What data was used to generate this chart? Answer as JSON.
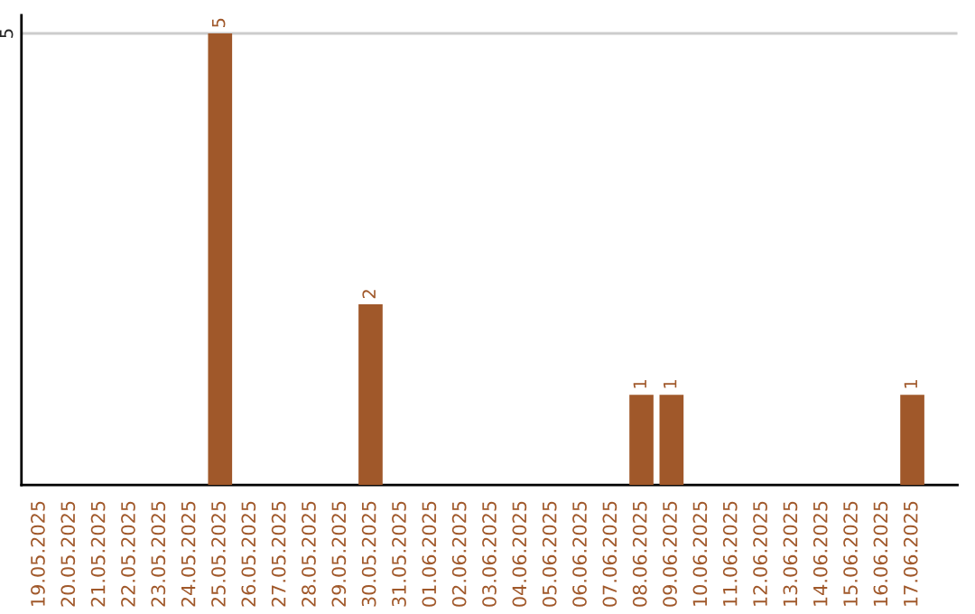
{
  "chart_data": {
    "type": "bar",
    "categories": [
      "19.05.2025",
      "20.05.2025",
      "21.05.2025",
      "22.05.2025",
      "23.05.2025",
      "24.05.2025",
      "25.05.2025",
      "26.05.2025",
      "27.05.2025",
      "28.05.2025",
      "29.05.2025",
      "30.05.2025",
      "31.05.2025",
      "01.06.2025",
      "02.06.2025",
      "03.06.2025",
      "04.06.2025",
      "05.06.2025",
      "06.06.2025",
      "07.06.2025",
      "08.06.2025",
      "09.06.2025",
      "10.06.2025",
      "11.06.2025",
      "12.06.2025",
      "13.06.2025",
      "14.06.2025",
      "15.06.2025",
      "16.06.2025",
      "17.06.2025"
    ],
    "values": [
      0,
      0,
      0,
      0,
      0,
      0,
      5,
      0,
      0,
      0,
      0,
      2,
      0,
      0,
      0,
      0,
      0,
      0,
      0,
      0,
      1,
      1,
      0,
      0,
      0,
      0,
      0,
      0,
      0,
      1
    ],
    "value_labels": [
      null,
      null,
      null,
      null,
      null,
      null,
      "5",
      null,
      null,
      null,
      null,
      "2",
      null,
      null,
      null,
      null,
      null,
      null,
      null,
      null,
      "1",
      "1",
      null,
      null,
      null,
      null,
      null,
      null,
      null,
      "1"
    ],
    "color": "#a0582a",
    "ylim": [
      0,
      5.2
    ],
    "yticks": [
      5
    ],
    "grid": "y",
    "legend": false
  }
}
